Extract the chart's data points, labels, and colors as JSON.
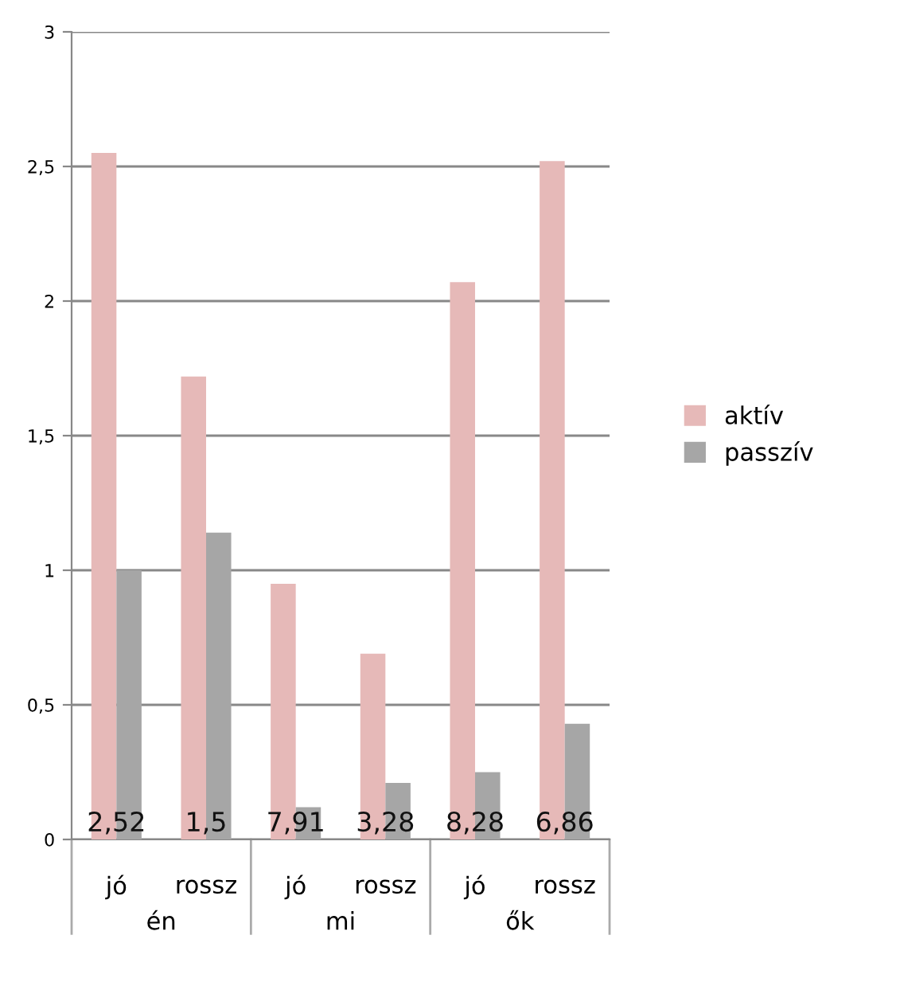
{
  "chart_data": {
    "type": "bar",
    "categories": [
      "jó",
      "rossz",
      "jó",
      "rossz",
      "jó",
      "rossz"
    ],
    "series": [
      {
        "name": "aktív",
        "color": "#e6b9b8",
        "values": [
          2.55,
          1.72,
          0.95,
          0.69,
          2.07,
          2.52
        ]
      },
      {
        "name": "passzív",
        "color": "#a6a6a6",
        "values": [
          1.0,
          1.14,
          0.12,
          0.21,
          0.25,
          0.43
        ]
      }
    ],
    "ylim": [
      0,
      3
    ],
    "yticks": [
      0,
      {
        "value": 0.5,
        "label": "0,5"
      },
      1,
      {
        "value": 1.5,
        "label": "1,5"
      },
      2,
      {
        "value": 2.5,
        "label": "2,5"
      },
      3
    ],
    "grid": "y",
    "legend": "right",
    "annotations": [
      "2,52",
      "1,5",
      "7,91",
      "3,28",
      "8,28",
      "6,86",
      "én",
      "mi",
      "ők"
    ]
  }
}
